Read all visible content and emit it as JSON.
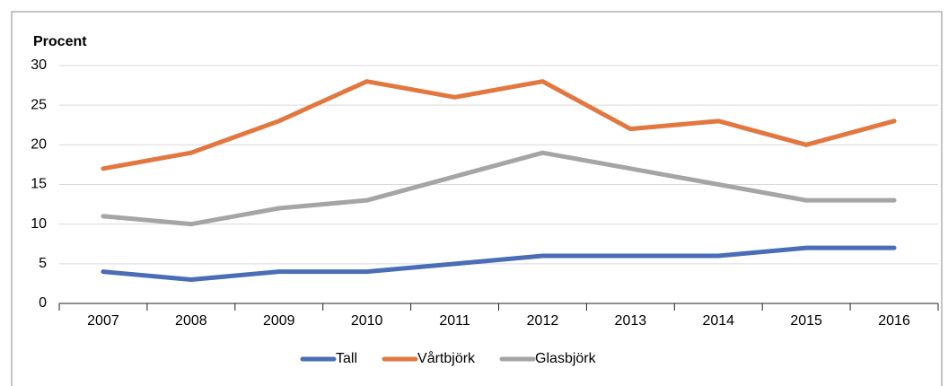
{
  "chart_data": {
    "type": "line",
    "y_label": "Procent",
    "categories": [
      "2007",
      "2008",
      "2009",
      "2010",
      "2011",
      "2012",
      "2013",
      "2014",
      "2015",
      "2016"
    ],
    "series": [
      {
        "name": "Tall",
        "color": "#4a6db5",
        "values": [
          4,
          3,
          4,
          4,
          5,
          6,
          6,
          6,
          7,
          7
        ]
      },
      {
        "name": "Vårtbjörk",
        "color": "#e2773f",
        "values": [
          17,
          19,
          23,
          28,
          26,
          28,
          22,
          23,
          20,
          23
        ]
      },
      {
        "name": "Glasbjörk",
        "color": "#a5a5a5",
        "values": [
          11,
          10,
          12,
          13,
          16,
          19,
          17,
          15,
          13,
          13
        ]
      }
    ],
    "ylim": [
      0,
      30
    ],
    "yticks": [
      0,
      5,
      10,
      15,
      20,
      25,
      30
    ],
    "grid": true,
    "legend": "bottom"
  }
}
